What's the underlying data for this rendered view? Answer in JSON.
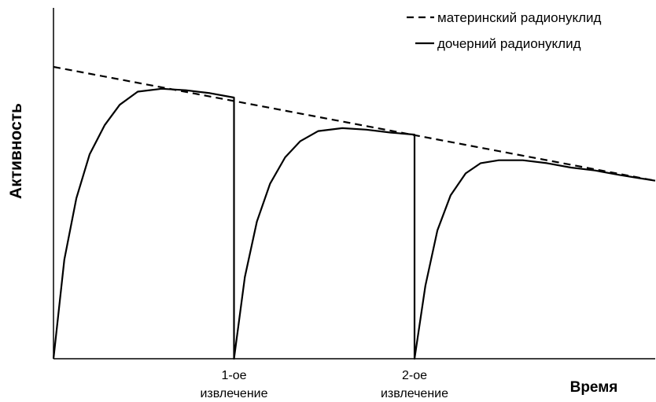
{
  "chart_data": {
    "type": "line",
    "title": "",
    "xlabel": "Время",
    "ylabel": "Активность",
    "xlim": [
      0,
      100
    ],
    "ylim": [
      0,
      100
    ],
    "grid": false,
    "legend_position": "top-right",
    "x_ticks": [
      {
        "x": 30,
        "line1": "1-ое",
        "line2": "извлечение"
      },
      {
        "x": 60,
        "line1": "2-ое",
        "line2": "извлечение"
      }
    ],
    "series": [
      {
        "name": "материнский радионуклид",
        "style": "dashed",
        "color": "#000000",
        "x": [
          0,
          100
        ],
        "y": [
          100,
          61
        ]
      },
      {
        "name": "дочерний радионуклид",
        "style": "solid",
        "color": "#000000",
        "x": [
          0,
          1.8,
          3.8,
          6,
          8.5,
          11,
          14,
          18,
          22,
          26,
          30,
          30,
          31.8,
          33.8,
          36,
          38.5,
          41,
          44,
          48,
          52,
          56,
          60,
          60,
          61.8,
          63.8,
          66,
          68.5,
          71,
          74,
          78,
          82,
          86,
          90,
          94,
          97,
          100
        ],
        "y": [
          0,
          34,
          55,
          70,
          80,
          87,
          91.5,
          92.5,
          92,
          91,
          89.5,
          0,
          28,
          47,
          60,
          69,
          74.5,
          78,
          79,
          78.5,
          77.5,
          76.8,
          0,
          25,
          44,
          56,
          63.5,
          67,
          68,
          68,
          67,
          65.5,
          64.5,
          63,
          62,
          61
        ]
      }
    ]
  }
}
